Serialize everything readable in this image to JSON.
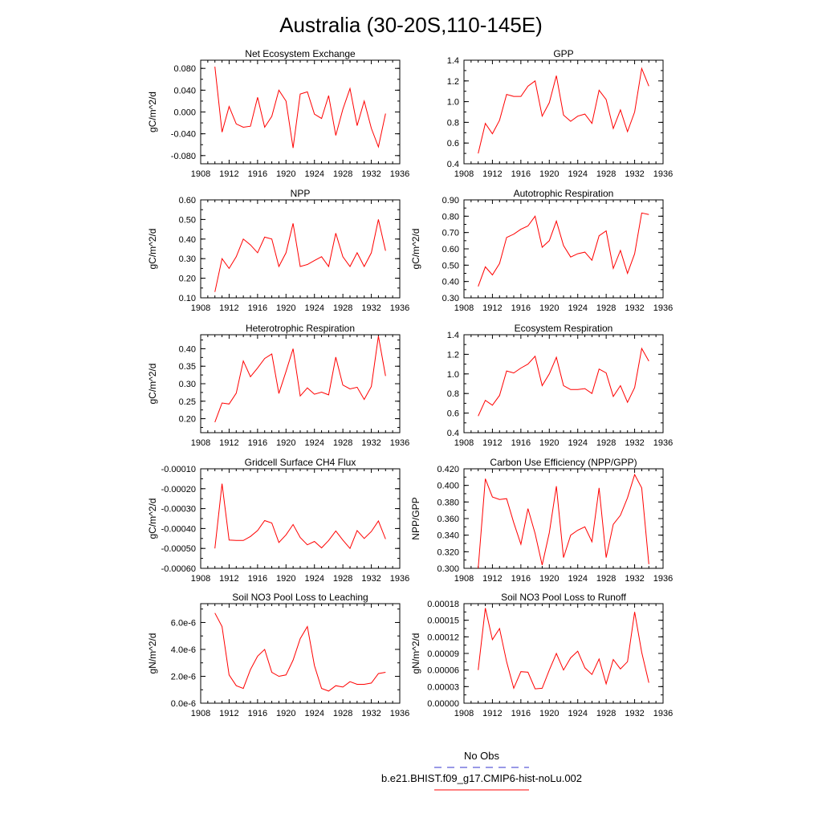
{
  "figure": {
    "title": "Australia (30-20S,110-145E)",
    "legend": [
      {
        "label": "No Obs",
        "color": "#3333cc",
        "dash": true
      },
      {
        "label": "b.e21.BHIST.f09_g17.CMIP6-hist-noLu.002",
        "color": "#ff0000",
        "dash": false
      }
    ]
  },
  "chart_data": [
    {
      "type": "line",
      "title": "Net Ecosystem Exchange",
      "ylabel": "gC/m^2/d",
      "xlim": [
        1908,
        1936
      ],
      "ylim": [
        -0.095,
        0.095
      ],
      "xticks": [
        1908,
        1912,
        1916,
        1920,
        1924,
        1928,
        1932,
        1936
      ],
      "yticks": [
        -0.08,
        -0.04,
        0.0,
        0.04,
        0.08
      ],
      "ytick_labels": [
        "-0.080",
        "-0.040",
        "0.000",
        "0.040",
        "0.080"
      ],
      "ytick_minor": 0.02,
      "x": [
        1910,
        1911,
        1912,
        1913,
        1914,
        1915,
        1916,
        1917,
        1918,
        1919,
        1920,
        1921,
        1922,
        1923,
        1924,
        1925,
        1926,
        1927,
        1928,
        1929,
        1930,
        1931,
        1932,
        1933,
        1934
      ],
      "series": [
        {
          "color": "#ff0000",
          "values": [
            0.083,
            -0.037,
            0.01,
            -0.022,
            -0.028,
            -0.026,
            0.027,
            -0.028,
            -0.008,
            0.04,
            0.02,
            -0.066,
            0.033,
            0.037,
            -0.004,
            -0.012,
            0.03,
            -0.043,
            0.005,
            0.043,
            -0.025,
            0.02,
            -0.03,
            -0.064,
            -0.003
          ]
        }
      ]
    },
    {
      "type": "line",
      "title": "GPP",
      "ylabel": "",
      "xlim": [
        1908,
        1936
      ],
      "ylim": [
        0.4,
        1.4
      ],
      "xticks": [
        1908,
        1912,
        1916,
        1920,
        1924,
        1928,
        1932,
        1936
      ],
      "yticks": [
        0.4,
        0.6,
        0.8,
        1.0,
        1.2,
        1.4
      ],
      "ytick_labels": [
        "0.4",
        "0.6",
        "0.8",
        "1.0",
        "1.2",
        "1.4"
      ],
      "ytick_minor": 0.1,
      "x": [
        1910,
        1911,
        1912,
        1913,
        1914,
        1915,
        1916,
        1917,
        1918,
        1919,
        1920,
        1921,
        1922,
        1923,
        1924,
        1925,
        1926,
        1927,
        1928,
        1929,
        1930,
        1931,
        1932,
        1933,
        1934
      ],
      "series": [
        {
          "color": "#ff0000",
          "values": [
            0.5,
            0.79,
            0.69,
            0.82,
            1.07,
            1.05,
            1.05,
            1.15,
            1.2,
            0.86,
            0.99,
            1.25,
            0.87,
            0.81,
            0.86,
            0.88,
            0.79,
            1.11,
            1.02,
            0.74,
            0.92,
            0.71,
            0.9,
            1.32,
            1.15
          ]
        }
      ]
    },
    {
      "type": "line",
      "title": "NPP",
      "ylabel": "gC/m^2/d",
      "xlim": [
        1908,
        1936
      ],
      "ylim": [
        0.1,
        0.6
      ],
      "xticks": [
        1908,
        1912,
        1916,
        1920,
        1924,
        1928,
        1932,
        1936
      ],
      "yticks": [
        0.1,
        0.2,
        0.3,
        0.4,
        0.5,
        0.6
      ],
      "ytick_labels": [
        "0.10",
        "0.20",
        "0.30",
        "0.40",
        "0.50",
        "0.60"
      ],
      "ytick_minor": 0.05,
      "x": [
        1910,
        1911,
        1912,
        1913,
        1914,
        1915,
        1916,
        1917,
        1918,
        1919,
        1920,
        1921,
        1922,
        1923,
        1924,
        1925,
        1926,
        1927,
        1928,
        1929,
        1930,
        1931,
        1932,
        1933,
        1934
      ],
      "series": [
        {
          "color": "#ff0000",
          "values": [
            0.13,
            0.3,
            0.25,
            0.31,
            0.4,
            0.37,
            0.33,
            0.41,
            0.4,
            0.26,
            0.33,
            0.48,
            0.26,
            0.27,
            0.29,
            0.31,
            0.26,
            0.43,
            0.31,
            0.26,
            0.33,
            0.26,
            0.33,
            0.5,
            0.34
          ]
        }
      ]
    },
    {
      "type": "line",
      "title": "Autotrophic Respiration",
      "ylabel": "gC/m^2/d",
      "xlim": [
        1908,
        1936
      ],
      "ylim": [
        0.3,
        0.9
      ],
      "xticks": [
        1908,
        1912,
        1916,
        1920,
        1924,
        1928,
        1932,
        1936
      ],
      "yticks": [
        0.3,
        0.4,
        0.5,
        0.6,
        0.7,
        0.8,
        0.9
      ],
      "ytick_labels": [
        "0.30",
        "0.40",
        "0.50",
        "0.60",
        "0.70",
        "0.80",
        "0.90"
      ],
      "ytick_minor": 0.05,
      "x": [
        1910,
        1911,
        1912,
        1913,
        1914,
        1915,
        1916,
        1917,
        1918,
        1919,
        1920,
        1921,
        1922,
        1923,
        1924,
        1925,
        1926,
        1927,
        1928,
        1929,
        1930,
        1931,
        1932,
        1933,
        1934
      ],
      "series": [
        {
          "color": "#ff0000",
          "values": [
            0.37,
            0.49,
            0.44,
            0.51,
            0.67,
            0.69,
            0.72,
            0.74,
            0.8,
            0.61,
            0.65,
            0.77,
            0.62,
            0.55,
            0.57,
            0.58,
            0.53,
            0.68,
            0.71,
            0.48,
            0.59,
            0.45,
            0.57,
            0.82,
            0.81
          ]
        }
      ]
    },
    {
      "type": "line",
      "title": "Heterotrophic Respiration",
      "ylabel": "gC/m^2/d",
      "xlim": [
        1908,
        1936
      ],
      "ylim": [
        0.16,
        0.44
      ],
      "xticks": [
        1908,
        1912,
        1916,
        1920,
        1924,
        1928,
        1932,
        1936
      ],
      "yticks": [
        0.2,
        0.25,
        0.3,
        0.35,
        0.4
      ],
      "ytick_labels": [
        "0.20",
        "0.25",
        "0.30",
        "0.35",
        "0.40"
      ],
      "ytick_minor": 0.025,
      "x": [
        1910,
        1911,
        1912,
        1913,
        1914,
        1915,
        1916,
        1917,
        1918,
        1919,
        1920,
        1921,
        1922,
        1923,
        1924,
        1925,
        1926,
        1927,
        1928,
        1929,
        1930,
        1931,
        1932,
        1933,
        1934
      ],
      "series": [
        {
          "color": "#ff0000",
          "values": [
            0.19,
            0.245,
            0.242,
            0.273,
            0.365,
            0.32,
            0.345,
            0.372,
            0.385,
            0.272,
            0.335,
            0.4,
            0.265,
            0.288,
            0.27,
            0.276,
            0.268,
            0.376,
            0.296,
            0.285,
            0.29,
            0.255,
            0.292,
            0.436,
            0.322
          ]
        }
      ]
    },
    {
      "type": "line",
      "title": "Ecosystem Respiration",
      "ylabel": "",
      "xlim": [
        1908,
        1936
      ],
      "ylim": [
        0.4,
        1.4
      ],
      "xticks": [
        1908,
        1912,
        1916,
        1920,
        1924,
        1928,
        1932,
        1936
      ],
      "yticks": [
        0.4,
        0.6,
        0.8,
        1.0,
        1.2,
        1.4
      ],
      "ytick_labels": [
        "0.4",
        "0.6",
        "0.8",
        "1.0",
        "1.2",
        "1.4"
      ],
      "ytick_minor": 0.1,
      "x": [
        1910,
        1911,
        1912,
        1913,
        1914,
        1915,
        1916,
        1917,
        1918,
        1919,
        1920,
        1921,
        1922,
        1923,
        1924,
        1925,
        1926,
        1927,
        1928,
        1929,
        1930,
        1931,
        1932,
        1933,
        1934
      ],
      "series": [
        {
          "color": "#ff0000",
          "values": [
            0.57,
            0.73,
            0.68,
            0.78,
            1.03,
            1.01,
            1.06,
            1.1,
            1.18,
            0.88,
            1.0,
            1.17,
            0.88,
            0.84,
            0.84,
            0.85,
            0.8,
            1.05,
            1.01,
            0.77,
            0.88,
            0.71,
            0.86,
            1.26,
            1.13
          ]
        }
      ]
    },
    {
      "type": "line",
      "title": "Gridcell Surface CH4 Flux",
      "ylabel": "gC/m^2/d",
      "xlim": [
        1908,
        1936
      ],
      "ylim": [
        -0.0006,
        -0.0001
      ],
      "xticks": [
        1908,
        1912,
        1916,
        1920,
        1924,
        1928,
        1932,
        1936
      ],
      "yticks": [
        -0.0006,
        -0.0005,
        -0.0004,
        -0.0003,
        -0.0002,
        -0.0001
      ],
      "ytick_labels": [
        "-0.00060",
        "-0.00050",
        "-0.00040",
        "-0.00030",
        "-0.00020",
        "-0.00010"
      ],
      "ytick_minor": 5e-05,
      "x": [
        1910,
        1911,
        1912,
        1913,
        1914,
        1915,
        1916,
        1917,
        1918,
        1919,
        1920,
        1921,
        1922,
        1923,
        1924,
        1925,
        1926,
        1927,
        1928,
        1929,
        1930,
        1931,
        1932,
        1933,
        1934
      ],
      "series": [
        {
          "color": "#ff0000",
          "values": [
            -0.0005,
            -0.000175,
            -0.000458,
            -0.00046,
            -0.00046,
            -0.00044,
            -0.00041,
            -0.00036,
            -0.000372,
            -0.00047,
            -0.000432,
            -0.00038,
            -0.000445,
            -0.000482,
            -0.000465,
            -0.000497,
            -0.00046,
            -0.000412,
            -0.000458,
            -0.0005,
            -0.00041,
            -0.00045,
            -0.000415,
            -0.000362,
            -0.000453
          ]
        }
      ]
    },
    {
      "type": "line",
      "title": "Carbon Use Efficiency (NPP/GPP)",
      "ylabel": "NPP/GPP",
      "xlim": [
        1908,
        1936
      ],
      "ylim": [
        0.3,
        0.42
      ],
      "xticks": [
        1908,
        1912,
        1916,
        1920,
        1924,
        1928,
        1932,
        1936
      ],
      "yticks": [
        0.3,
        0.32,
        0.34,
        0.36,
        0.38,
        0.4,
        0.42
      ],
      "ytick_labels": [
        "0.300",
        "0.320",
        "0.340",
        "0.360",
        "0.380",
        "0.400",
        "0.420"
      ],
      "ytick_minor": 0.01,
      "x": [
        1910,
        1911,
        1912,
        1913,
        1914,
        1915,
        1916,
        1917,
        1918,
        1919,
        1920,
        1921,
        1922,
        1923,
        1924,
        1925,
        1926,
        1927,
        1928,
        1929,
        1930,
        1931,
        1932,
        1933,
        1934
      ],
      "series": [
        {
          "color": "#ff0000",
          "values": [
            0.3,
            0.408,
            0.386,
            0.383,
            0.384,
            0.355,
            0.329,
            0.372,
            0.342,
            0.304,
            0.343,
            0.399,
            0.313,
            0.34,
            0.346,
            0.35,
            0.332,
            0.397,
            0.313,
            0.353,
            0.364,
            0.385,
            0.413,
            0.397,
            0.305
          ]
        }
      ]
    },
    {
      "type": "line",
      "title": "Soil NO3 Pool Loss to Leaching",
      "ylabel": "gN/m^2/d",
      "xlim": [
        1908,
        1936
      ],
      "ylim": [
        0.0,
        7.4e-06
      ],
      "xticks": [
        1908,
        1912,
        1916,
        1920,
        1924,
        1928,
        1932,
        1936
      ],
      "yticks": [
        0.0,
        2e-06,
        4e-06,
        6e-06
      ],
      "ytick_labels": [
        "0.0e-6",
        "2.0e-6",
        "4.0e-6",
        "6.0e-6"
      ],
      "ytick_minor": 1e-06,
      "x": [
        1910,
        1911,
        1912,
        1913,
        1914,
        1915,
        1916,
        1917,
        1918,
        1919,
        1920,
        1921,
        1922,
        1923,
        1924,
        1925,
        1926,
        1927,
        1928,
        1929,
        1930,
        1931,
        1932,
        1933,
        1934
      ],
      "series": [
        {
          "color": "#ff0000",
          "values": [
            6.7e-06,
            5.7e-06,
            2.1e-06,
            1.3e-06,
            1.1e-06,
            2.5e-06,
            3.5e-06,
            4e-06,
            2.3e-06,
            2e-06,
            2.1e-06,
            3.2e-06,
            4.8e-06,
            5.7e-06,
            2.8e-06,
            1.1e-06,
            9e-07,
            1.3e-06,
            1.2e-06,
            1.6e-06,
            1.4e-06,
            1.4e-06,
            1.5e-06,
            2.2e-06,
            2.3e-06
          ]
        }
      ]
    },
    {
      "type": "line",
      "title": "Soil NO3 Pool Loss to Runoff",
      "ylabel": "gN/m^2/d",
      "xlim": [
        1908,
        1936
      ],
      "ylim": [
        0.0,
        0.00018
      ],
      "xticks": [
        1908,
        1912,
        1916,
        1920,
        1924,
        1928,
        1932,
        1936
      ],
      "yticks": [
        0.0,
        3e-05,
        6e-05,
        9e-05,
        0.00012,
        0.00015,
        0.00018
      ],
      "ytick_labels": [
        "0.00000",
        "0.00003",
        "0.00006",
        "0.00009",
        "0.00012",
        "0.00015",
        "0.00018"
      ],
      "ytick_minor": 1.5e-05,
      "x": [
        1910,
        1911,
        1912,
        1913,
        1914,
        1915,
        1916,
        1917,
        1918,
        1919,
        1920,
        1921,
        1922,
        1923,
        1924,
        1925,
        1926,
        1927,
        1928,
        1929,
        1930,
        1931,
        1932,
        1933,
        1934
      ],
      "series": [
        {
          "color": "#ff0000",
          "values": [
            6e-05,
            0.000172,
            0.000115,
            0.000135,
            7.5e-05,
            2.7e-05,
            5.7e-05,
            5.6e-05,
            2.6e-05,
            2.7e-05,
            6e-05,
            9e-05,
            6e-05,
            8.2e-05,
            9.4e-05,
            6.4e-05,
            5.2e-05,
            8e-05,
            3.5e-05,
            7.9e-05,
            6.2e-05,
            7.5e-05,
            0.000165,
            9.2e-05,
            3.7e-05
          ]
        }
      ]
    }
  ]
}
